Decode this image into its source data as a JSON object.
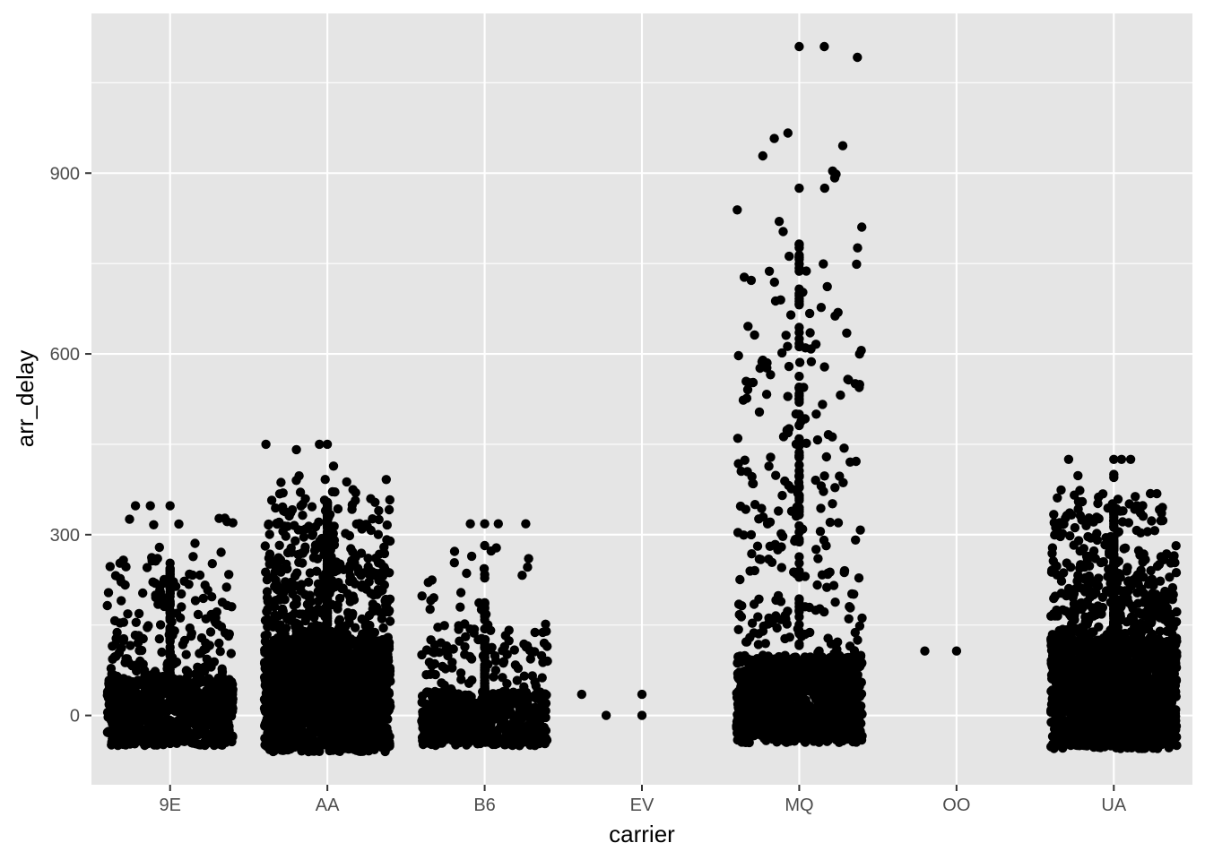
{
  "chart_data": {
    "type": "scatter",
    "subtype": "jitter",
    "xlabel": "carrier",
    "ylabel": "arr_delay",
    "categories": [
      "9E",
      "AA",
      "B6",
      "EV",
      "MQ",
      "OO",
      "UA"
    ],
    "ylim": [
      -115,
      1165
    ],
    "yticks": [
      0,
      300,
      600,
      900
    ],
    "yticks_labels": [
      "0",
      "300",
      "600",
      "900"
    ],
    "grid": true,
    "legend": "none",
    "colors": {
      "panel": "#e5e5e5",
      "grid": "#ffffff",
      "points": "#000000",
      "tick_text": "#4d4d4d"
    },
    "distribution_summary": [
      {
        "carrier": "9E",
        "dense_min": -50,
        "dense_max": 60,
        "points_est": 900,
        "max": 348
      },
      {
        "carrier": "AA",
        "dense_min": -60,
        "dense_max": 130,
        "points_est": 2000,
        "max": 450
      },
      {
        "carrier": "B6",
        "dense_min": -50,
        "dense_max": 40,
        "points_est": 700,
        "max": 318
      },
      {
        "carrier": "EV",
        "dense_min": 0,
        "dense_max": 0,
        "points_est": 4,
        "max": 35
      },
      {
        "carrier": "MQ",
        "dense_min": -45,
        "dense_max": 100,
        "points_est": 1300,
        "max": 1110
      },
      {
        "carrier": "OO",
        "dense_min": 0,
        "dense_max": 0,
        "points_est": 2,
        "max": 107
      },
      {
        "carrier": "UA",
        "dense_min": -55,
        "dense_max": 130,
        "points_est": 2000,
        "max": 425
      }
    ],
    "notable_points": [
      {
        "x": "9E",
        "y": 348
      },
      {
        "x": "9E",
        "y": 348
      },
      {
        "x": "AA",
        "y": 450
      },
      {
        "x": "AA",
        "y": 450
      },
      {
        "x": "AA",
        "y": 330
      },
      {
        "x": "AA",
        "y": 325
      },
      {
        "x": "B6",
        "y": 318
      },
      {
        "x": "B6",
        "y": 318
      },
      {
        "x": "B6",
        "y": 282
      },
      {
        "x": "B6",
        "y": 278
      },
      {
        "x": "EV",
        "y": 0
      },
      {
        "x": "EV",
        "y": 35
      },
      {
        "x": "EV",
        "y": 35
      },
      {
        "x": "EV",
        "y": 0
      },
      {
        "x": "MQ",
        "y": 1110
      },
      {
        "x": "MQ",
        "y": 1110
      },
      {
        "x": "MQ",
        "y": 875
      },
      {
        "x": "MQ",
        "y": 875
      },
      {
        "x": "MQ",
        "y": 428
      },
      {
        "x": "MQ",
        "y": 385
      },
      {
        "x": "MQ",
        "y": 365
      },
      {
        "x": "MQ",
        "y": 107
      },
      {
        "x": "OO",
        "y": 107
      },
      {
        "x": "OO",
        "y": 107
      },
      {
        "x": "UA",
        "y": 425
      },
      {
        "x": "UA",
        "y": 425
      },
      {
        "x": "UA",
        "y": 400
      },
      {
        "x": "UA",
        "y": 398
      },
      {
        "x": "UA",
        "y": 395
      }
    ]
  }
}
